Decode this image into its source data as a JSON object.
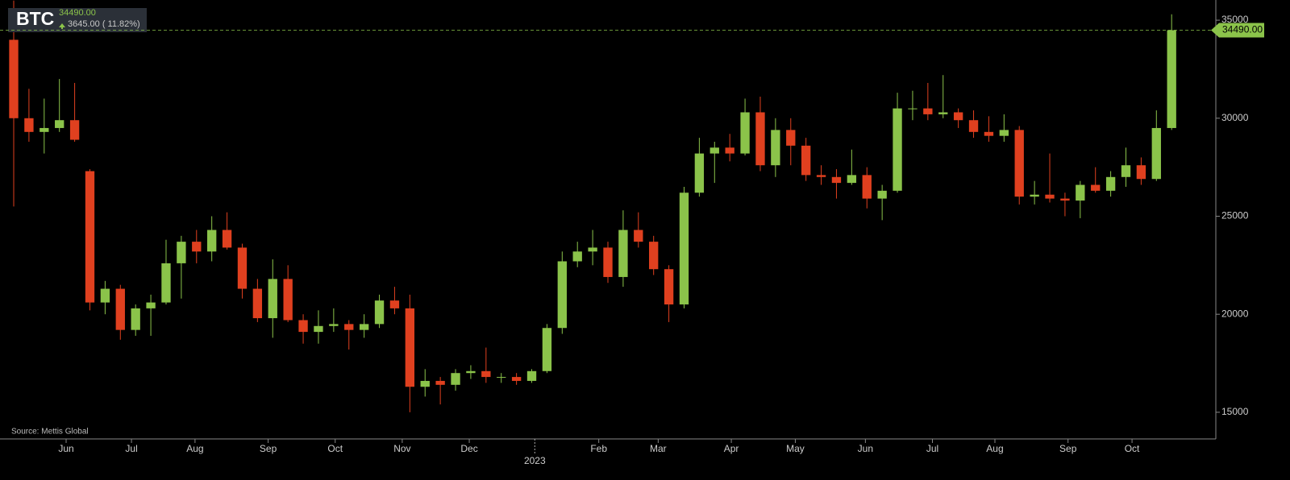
{
  "chart_data": {
    "type": "candlestick",
    "symbol": "BTC",
    "last_price": {
      "value": 34490,
      "label": "34490.00"
    },
    "change_label": "3645.00 ( 11.82%)",
    "source": "Source: Mettis Global",
    "up_color": "#8bc34a",
    "down_color": "#e0401f",
    "candles": {
      "open": [
        34000,
        30000,
        29300,
        29500,
        29900,
        27300,
        20600,
        21300,
        19200,
        20300,
        20600,
        22600,
        23700,
        23200,
        24300,
        23400,
        21300,
        19800,
        21800,
        19700,
        19100,
        19400,
        19500,
        19200,
        19500,
        20700,
        20300,
        16300,
        16600,
        16400,
        17000,
        17100,
        16800,
        16800,
        16600,
        17100,
        19300,
        22700,
        23200,
        23400,
        21900,
        24300,
        23700,
        22300,
        20500,
        26200,
        28200,
        28500,
        28200,
        30300,
        27600,
        29400,
        28600,
        27100,
        27000,
        26700,
        27100,
        25900,
        26300,
        30500,
        30500,
        30200,
        30300,
        29900,
        29300,
        29100,
        29400,
        26000,
        26100,
        25900,
        25800,
        26600,
        26300,
        27000,
        27600,
        26900,
        29500
      ],
      "high": [
        36000,
        31500,
        31000,
        32000,
        31800,
        27400,
        21700,
        21500,
        20500,
        21000,
        23800,
        24000,
        24300,
        25000,
        25200,
        23600,
        21800,
        22800,
        22500,
        20000,
        20200,
        20300,
        19700,
        20000,
        21000,
        21400,
        21000,
        17200,
        16800,
        17200,
        17400,
        18300,
        17000,
        17000,
        17200,
        19500,
        23200,
        23700,
        24300,
        23700,
        25300,
        25200,
        24000,
        22500,
        26500,
        29000,
        28800,
        29200,
        31000,
        31100,
        30000,
        30000,
        29000,
        27600,
        27400,
        28400,
        27500,
        26600,
        31300,
        31400,
        31800,
        32200,
        30500,
        30400,
        30100,
        30200,
        29600,
        26800,
        28200,
        26200,
        26800,
        27500,
        27300,
        28500,
        28000,
        30400,
        35300
      ],
      "low": [
        25500,
        28800,
        28200,
        29300,
        28800,
        20200,
        20000,
        18700,
        18900,
        18900,
        20500,
        20800,
        22600,
        22700,
        23300,
        20800,
        19600,
        18800,
        19600,
        18500,
        18500,
        19100,
        18200,
        18800,
        19300,
        20000,
        15000,
        15800,
        15400,
        16100,
        16700,
        16500,
        16500,
        16400,
        16500,
        17000,
        19000,
        22400,
        22500,
        21600,
        21400,
        23400,
        22000,
        19600,
        20300,
        26000,
        26700,
        27800,
        28100,
        27300,
        27000,
        27600,
        26800,
        26600,
        25900,
        26600,
        25400,
        24800,
        26200,
        29900,
        29900,
        30000,
        29500,
        29000,
        28800,
        28800,
        25600,
        25600,
        25700,
        25000,
        24900,
        26200,
        26000,
        26500,
        26600,
        26800,
        29400
      ],
      "close": [
        30000,
        29300,
        29500,
        29900,
        28900,
        20600,
        21300,
        19200,
        20300,
        20600,
        22600,
        23700,
        23200,
        24300,
        23400,
        21300,
        19800,
        21800,
        19700,
        19100,
        19400,
        19500,
        19200,
        19500,
        20700,
        20300,
        16300,
        16600,
        16400,
        17000,
        17100,
        16800,
        16800,
        16600,
        17100,
        19300,
        22700,
        23200,
        23400,
        21900,
        24300,
        23700,
        22300,
        20500,
        26200,
        28200,
        28500,
        28200,
        30300,
        27600,
        29400,
        28600,
        27100,
        27000,
        26700,
        27100,
        25900,
        26300,
        30500,
        30500,
        30200,
        30300,
        29900,
        29300,
        29100,
        29400,
        26000,
        26100,
        25900,
        25800,
        26600,
        26300,
        27000,
        27600,
        26900,
        29500,
        34490
      ]
    },
    "xlim": [
      -0.9,
      78.9
    ],
    "xticks": [
      {
        "value": 3.44,
        "label": "Jun"
      },
      {
        "value": 7.73,
        "label": "Jul"
      },
      {
        "value": 11.9,
        "label": "Aug"
      },
      {
        "value": 16.7,
        "label": "Sep"
      },
      {
        "value": 21.1,
        "label": "Oct"
      },
      {
        "value": 25.5,
        "label": "Nov"
      },
      {
        "value": 29.9,
        "label": "Dec"
      },
      {
        "value": 38.4,
        "label": "Feb"
      },
      {
        "value": 42.3,
        "label": "Mar"
      },
      {
        "value": 47.1,
        "label": "Apr"
      },
      {
        "value": 51.3,
        "label": "May"
      },
      {
        "value": 55.9,
        "label": "Jun"
      },
      {
        "value": 60.3,
        "label": "Jul"
      },
      {
        "value": 64.4,
        "label": "Aug"
      },
      {
        "value": 69.2,
        "label": "Sep"
      },
      {
        "value": 73.4,
        "label": "Oct"
      }
    ],
    "year_tick": {
      "value": 34.2,
      "label": "2023"
    },
    "ylim": [
      13640,
      36030
    ],
    "yticks": [
      15000,
      20000,
      25000,
      30000,
      35000
    ]
  }
}
